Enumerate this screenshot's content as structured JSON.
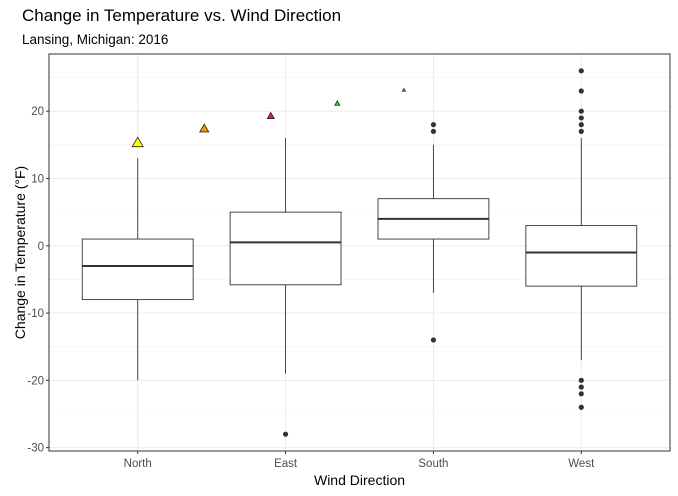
{
  "chart_data": {
    "type": "boxplot",
    "title": "Change in Temperature vs. Wind Direction",
    "subtitle": "Lansing, Michigan: 2016",
    "xlabel": "Wind Direction",
    "ylabel": "Change in Temperature (°F)",
    "ylim": [
      -30.5,
      28.5
    ],
    "y_ticks": [
      -30,
      -20,
      -10,
      0,
      10,
      20
    ],
    "grid": true,
    "categories": [
      "North",
      "East",
      "South",
      "West"
    ],
    "boxes": [
      {
        "category": "North",
        "whisker_low": -20,
        "q1": -8,
        "median": -3,
        "q3": 1,
        "whisker_high": 13,
        "outliers": []
      },
      {
        "category": "East",
        "whisker_low": -19,
        "q1": -5.8,
        "median": 0.5,
        "q3": 5,
        "whisker_high": 16,
        "outliers": [
          -28
        ]
      },
      {
        "category": "South",
        "whisker_low": -7,
        "q1": 1,
        "median": 4,
        "q3": 7,
        "whisker_high": 15,
        "outliers": [
          18,
          17,
          -14
        ]
      },
      {
        "category": "West",
        "whisker_low": -17,
        "q1": -6,
        "median": -1,
        "q3": 3,
        "whisker_high": 16,
        "outliers": [
          26,
          23,
          20,
          19,
          18,
          17,
          -20,
          -21,
          -22,
          -24
        ]
      }
    ],
    "triangle_markers": [
      {
        "x": 1.0,
        "y": 15.2,
        "size": 11,
        "color": "#ffff00"
      },
      {
        "x": 1.45,
        "y": 17.3,
        "size": 9,
        "color": "#ff9900"
      },
      {
        "x": 1.9,
        "y": 19.2,
        "size": 7,
        "color": "#ee1133"
      },
      {
        "x": 2.35,
        "y": 21.1,
        "size": 5,
        "color": "#00ee44"
      },
      {
        "x": 2.8,
        "y": 23.1,
        "size": 3,
        "color": "#88bbff"
      }
    ]
  }
}
